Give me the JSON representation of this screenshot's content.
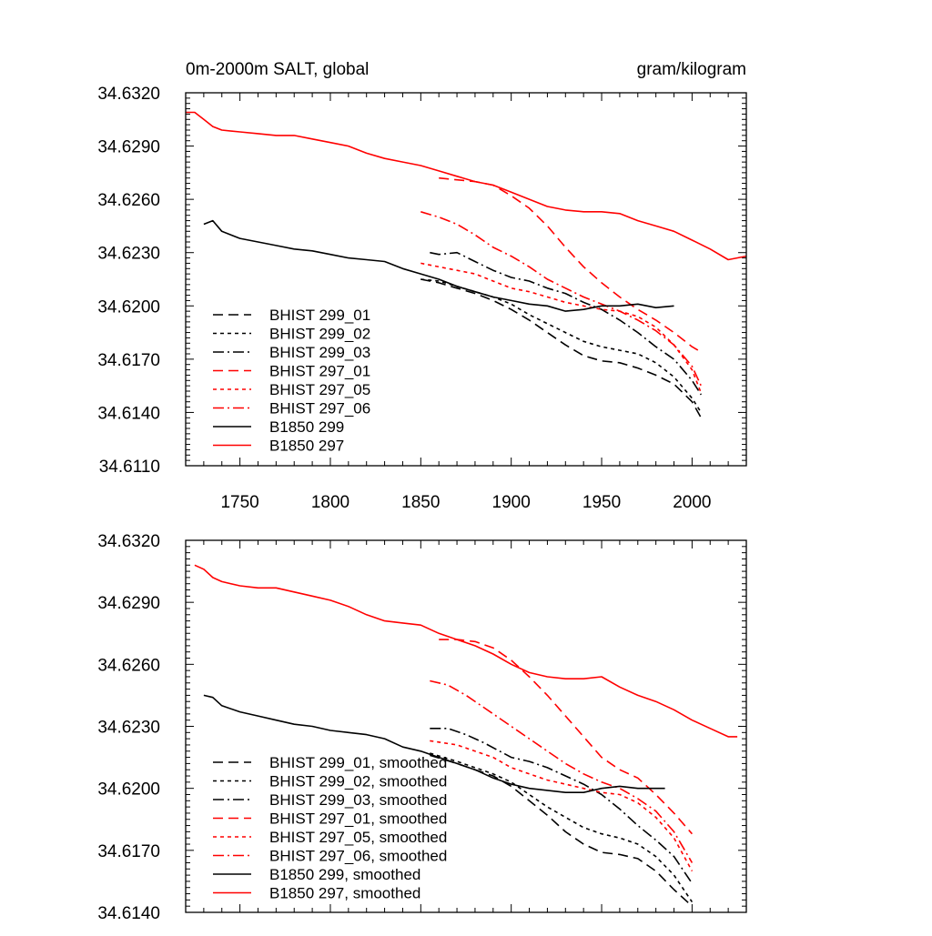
{
  "chart_data": [
    {
      "type": "line",
      "title": "0m-2000m SALT, global",
      "units": "gram/kilogram",
      "xlabel": "",
      "ylabel": "",
      "xlim": [
        1720,
        2030
      ],
      "ylim": [
        34.611,
        34.632
      ],
      "xticks": [
        1750,
        1800,
        1850,
        1900,
        1950,
        2000
      ],
      "xtick_labels": [
        "1750",
        "1800",
        "1850",
        "1900",
        "1950",
        "2000"
      ],
      "yticks": [
        34.611,
        34.614,
        34.617,
        34.62,
        34.623,
        34.626,
        34.629,
        34.632
      ],
      "ytick_labels": [
        "34.6110",
        "34.6140",
        "34.6170",
        "34.6200",
        "34.6230",
        "34.6260",
        "34.6290",
        "34.6320"
      ],
      "legend_position": "lower-left",
      "series": [
        {
          "name": "BHIST 299_01",
          "color": "#000000",
          "dash": "long-dash",
          "x": [
            1850,
            1860,
            1870,
            1880,
            1890,
            1900,
            1910,
            1920,
            1930,
            1940,
            1950,
            1960,
            1970,
            1980,
            1990,
            2000,
            2005
          ],
          "y": [
            34.6215,
            34.6213,
            34.621,
            34.6207,
            34.6203,
            34.6198,
            34.6192,
            34.6185,
            34.6178,
            34.6172,
            34.6169,
            34.6168,
            34.6165,
            34.6161,
            34.6156,
            34.6146,
            34.6137
          ]
        },
        {
          "name": "BHIST 299_02",
          "color": "#000000",
          "dash": "short-dash",
          "x": [
            1850,
            1860,
            1870,
            1880,
            1890,
            1900,
            1910,
            1920,
            1930,
            1940,
            1950,
            1960,
            1970,
            1980,
            1990,
            2000,
            2005
          ],
          "y": [
            34.6215,
            34.6214,
            34.6211,
            34.6208,
            34.6205,
            34.6201,
            34.6195,
            34.619,
            34.6185,
            34.618,
            34.6177,
            34.6175,
            34.6173,
            34.6168,
            34.616,
            34.6148,
            34.614
          ]
        },
        {
          "name": "BHIST 299_03",
          "color": "#000000",
          "dash": "dash-dot",
          "x": [
            1855,
            1860,
            1870,
            1880,
            1890,
            1900,
            1910,
            1920,
            1930,
            1940,
            1950,
            1960,
            1970,
            1980,
            1990,
            2000,
            2005
          ],
          "y": [
            34.623,
            34.6229,
            34.623,
            34.6225,
            34.622,
            34.6216,
            34.6214,
            34.621,
            34.6207,
            34.6202,
            34.6198,
            34.6192,
            34.6185,
            34.6177,
            34.617,
            34.6158,
            34.615
          ]
        },
        {
          "name": "BHIST 297_01",
          "color": "#ff0000",
          "dash": "long-dash",
          "x": [
            1860,
            1870,
            1880,
            1890,
            1900,
            1910,
            1920,
            1930,
            1940,
            1950,
            1960,
            1970,
            1980,
            1990,
            2000,
            2005
          ],
          "y": [
            34.6272,
            34.6271,
            34.627,
            34.6268,
            34.6262,
            34.6255,
            34.6245,
            34.6233,
            34.6222,
            34.6213,
            34.6205,
            34.6198,
            34.6192,
            34.6185,
            34.6177,
            34.6174
          ]
        },
        {
          "name": "BHIST 297_05",
          "color": "#ff0000",
          "dash": "short-dash",
          "x": [
            1850,
            1860,
            1870,
            1880,
            1890,
            1900,
            1910,
            1920,
            1930,
            1940,
            1950,
            1960,
            1970,
            1980,
            1990,
            2000,
            2005
          ],
          "y": [
            34.6224,
            34.6222,
            34.622,
            34.6218,
            34.6214,
            34.621,
            34.6208,
            34.6205,
            34.6202,
            34.62,
            34.6198,
            34.6197,
            34.6194,
            34.6188,
            34.6178,
            34.6164,
            34.6151
          ]
        },
        {
          "name": "BHIST 297_06",
          "color": "#ff0000",
          "dash": "dash-dot",
          "x": [
            1850,
            1860,
            1870,
            1880,
            1890,
            1900,
            1910,
            1920,
            1930,
            1940,
            1950,
            1960,
            1970,
            1980,
            1990,
            2000,
            2005
          ],
          "y": [
            34.6253,
            34.625,
            34.6246,
            34.624,
            34.6233,
            34.6228,
            34.6222,
            34.6215,
            34.621,
            34.6205,
            34.6201,
            34.6197,
            34.6192,
            34.6186,
            34.6178,
            34.6166,
            34.6155
          ]
        },
        {
          "name": "B1850 299",
          "color": "#000000",
          "dash": "solid",
          "x": [
            1730,
            1735,
            1740,
            1750,
            1760,
            1770,
            1780,
            1790,
            1800,
            1810,
            1820,
            1830,
            1840,
            1850,
            1860,
            1870,
            1880,
            1890,
            1900,
            1910,
            1920,
            1930,
            1940,
            1950,
            1960,
            1970,
            1980,
            1990
          ],
          "y": [
            34.6246,
            34.6248,
            34.6242,
            34.6238,
            34.6236,
            34.6234,
            34.6232,
            34.6231,
            34.6229,
            34.6227,
            34.6226,
            34.6225,
            34.6221,
            34.6218,
            34.6215,
            34.6211,
            34.6208,
            34.6205,
            34.6203,
            34.6201,
            34.62,
            34.6197,
            34.6198,
            34.62,
            34.62,
            34.6201,
            34.6199,
            34.62
          ]
        },
        {
          "name": "B1850 297",
          "color": "#ff0000",
          "dash": "solid",
          "x": [
            1720,
            1725,
            1730,
            1735,
            1740,
            1750,
            1760,
            1770,
            1780,
            1790,
            1800,
            1810,
            1820,
            1830,
            1840,
            1850,
            1860,
            1870,
            1880,
            1890,
            1900,
            1910,
            1920,
            1930,
            1940,
            1950,
            1960,
            1970,
            1980,
            1990,
            2000,
            2010,
            2020,
            2030
          ],
          "y": [
            34.6309,
            34.6309,
            34.6305,
            34.6301,
            34.6299,
            34.6298,
            34.6297,
            34.6296,
            34.6296,
            34.6294,
            34.6292,
            34.629,
            34.6286,
            34.6283,
            34.6281,
            34.6279,
            34.6276,
            34.6273,
            34.627,
            34.6268,
            34.6264,
            34.626,
            34.6256,
            34.6254,
            34.6253,
            34.6253,
            34.6252,
            34.6248,
            34.6245,
            34.6242,
            34.6237,
            34.6232,
            34.6226,
            34.6228
          ]
        }
      ]
    },
    {
      "type": "line",
      "title": "",
      "xlabel": "",
      "ylabel": "",
      "xlim": [
        1720,
        2030
      ],
      "ylim": [
        34.614,
        34.632
      ],
      "xticks": [
        1750,
        1800,
        1850,
        1900,
        1950,
        2000
      ],
      "yticks": [
        34.614,
        34.617,
        34.62,
        34.623,
        34.626,
        34.629,
        34.632
      ],
      "ytick_labels": [
        "34.6140",
        "34.6170",
        "34.6200",
        "34.6230",
        "34.6260",
        "34.6290",
        "34.6320"
      ],
      "legend_position": "lower-left",
      "series": [
        {
          "name": "BHIST 299_01, smoothed",
          "color": "#000000",
          "dash": "long-dash",
          "x": [
            1855,
            1870,
            1880,
            1890,
            1900,
            1910,
            1920,
            1930,
            1940,
            1950,
            1960,
            1970,
            1980,
            1990,
            2000
          ],
          "y": [
            34.6216,
            34.6212,
            34.6209,
            34.6206,
            34.6201,
            34.6194,
            34.6187,
            34.6179,
            34.6173,
            34.6169,
            34.6168,
            34.6166,
            34.616,
            34.6151,
            34.6143
          ]
        },
        {
          "name": "BHIST 299_02, smoothed",
          "color": "#000000",
          "dash": "short-dash",
          "x": [
            1855,
            1870,
            1880,
            1890,
            1900,
            1910,
            1920,
            1930,
            1940,
            1950,
            1960,
            1970,
            1980,
            1990,
            2000
          ],
          "y": [
            34.6217,
            34.6213,
            34.621,
            34.6207,
            34.6203,
            34.6197,
            34.6191,
            34.6186,
            34.6181,
            34.6178,
            34.6176,
            34.6173,
            34.6167,
            34.6158,
            34.6145
          ]
        },
        {
          "name": "BHIST 299_03, smoothed",
          "color": "#000000",
          "dash": "dash-dot",
          "x": [
            1855,
            1865,
            1875,
            1885,
            1900,
            1910,
            1920,
            1930,
            1940,
            1950,
            1960,
            1970,
            1980,
            1990,
            2000
          ],
          "y": [
            34.6229,
            34.6229,
            34.6226,
            34.6222,
            34.6215,
            34.6213,
            34.621,
            34.6206,
            34.6202,
            34.6197,
            34.619,
            34.6182,
            34.6175,
            34.6167,
            34.6154
          ]
        },
        {
          "name": "BHIST 297_01, smoothed",
          "color": "#ff0000",
          "dash": "long-dash",
          "x": [
            1860,
            1870,
            1880,
            1890,
            1900,
            1910,
            1920,
            1930,
            1940,
            1950,
            1960,
            1970,
            1980,
            1990,
            2000
          ],
          "y": [
            34.6272,
            34.6272,
            34.6271,
            34.6268,
            34.6262,
            34.6254,
            34.6245,
            34.6235,
            34.6225,
            34.6215,
            34.6209,
            34.6205,
            34.6197,
            34.6188,
            34.6178
          ]
        },
        {
          "name": "BHIST 297_05, smoothed",
          "color": "#ff0000",
          "dash": "short-dash",
          "x": [
            1855,
            1870,
            1880,
            1890,
            1900,
            1910,
            1920,
            1930,
            1940,
            1950,
            1960,
            1970,
            1980,
            1990,
            2000
          ],
          "y": [
            34.6223,
            34.6221,
            34.6218,
            34.6215,
            34.621,
            34.6207,
            34.6204,
            34.6202,
            34.62,
            34.6198,
            34.6197,
            34.6193,
            34.6186,
            34.6176,
            34.616
          ]
        },
        {
          "name": "BHIST 297_06, smoothed",
          "color": "#ff0000",
          "dash": "dash-dot",
          "x": [
            1855,
            1865,
            1875,
            1885,
            1900,
            1910,
            1920,
            1930,
            1940,
            1950,
            1960,
            1970,
            1980,
            1990,
            2000
          ],
          "y": [
            34.6252,
            34.625,
            34.6245,
            34.6239,
            34.623,
            34.6224,
            34.6218,
            34.6212,
            34.6207,
            34.6203,
            34.62,
            34.6195,
            34.6189,
            34.6179,
            34.6164
          ]
        },
        {
          "name": "B1850 299, smoothed",
          "color": "#000000",
          "dash": "solid",
          "x": [
            1730,
            1735,
            1740,
            1750,
            1760,
            1770,
            1780,
            1790,
            1800,
            1810,
            1820,
            1830,
            1840,
            1850,
            1860,
            1870,
            1880,
            1890,
            1900,
            1910,
            1920,
            1930,
            1940,
            1950,
            1960,
            1970,
            1980,
            1985
          ],
          "y": [
            34.6245,
            34.6244,
            34.624,
            34.6237,
            34.6235,
            34.6233,
            34.6231,
            34.623,
            34.6228,
            34.6227,
            34.6226,
            34.6224,
            34.622,
            34.6218,
            34.6215,
            34.6212,
            34.6209,
            34.6205,
            34.6202,
            34.62,
            34.6199,
            34.6198,
            34.6198,
            34.62,
            34.6201,
            34.62,
            34.62,
            34.62
          ]
        },
        {
          "name": "B1850 297, smoothed",
          "color": "#ff0000",
          "dash": "solid",
          "x": [
            1725,
            1730,
            1735,
            1740,
            1750,
            1760,
            1770,
            1780,
            1790,
            1800,
            1810,
            1820,
            1830,
            1840,
            1850,
            1860,
            1870,
            1880,
            1890,
            1900,
            1910,
            1920,
            1930,
            1940,
            1950,
            1960,
            1970,
            1980,
            1990,
            2000,
            2010,
            2020,
            2025
          ],
          "y": [
            34.6308,
            34.6306,
            34.6302,
            34.63,
            34.6298,
            34.6297,
            34.6297,
            34.6295,
            34.6293,
            34.6291,
            34.6288,
            34.6284,
            34.6281,
            34.628,
            34.6279,
            34.6275,
            34.6272,
            34.6269,
            34.6265,
            34.626,
            34.6256,
            34.6254,
            34.6253,
            34.6253,
            34.6254,
            34.6249,
            34.6245,
            34.6242,
            34.6238,
            34.6233,
            34.6229,
            34.6225,
            34.6225
          ]
        }
      ]
    }
  ]
}
